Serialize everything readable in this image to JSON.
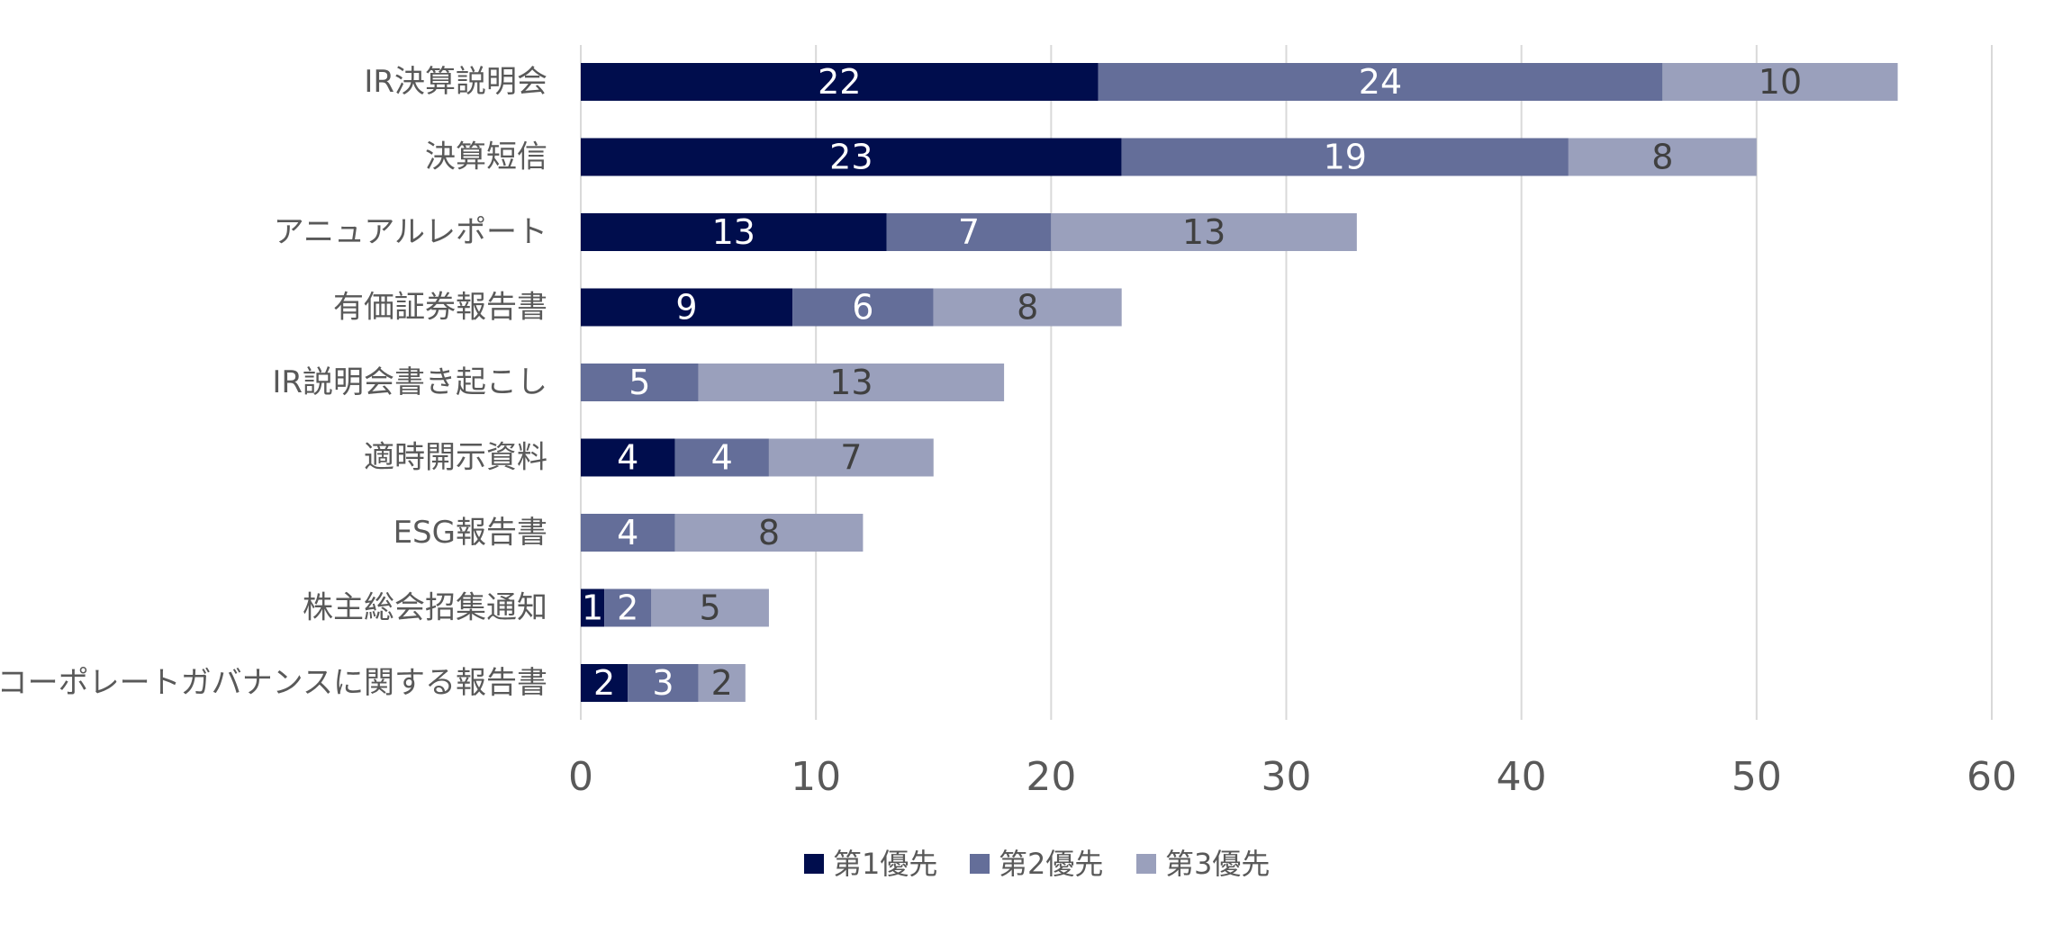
{
  "chart_data": {
    "type": "bar",
    "orientation": "horizontal",
    "stacked": true,
    "categories": [
      "IR決算説明会",
      "決算短信",
      "アニュアルレポート",
      "有価証券報告書",
      "IR説明会書き起こし",
      "適時開示資料",
      "ESG報告書",
      "株主総会招集通知",
      "コーポレートガバナンスに関する報告書"
    ],
    "series": [
      {
        "name": "第1優先",
        "color": "#000d4d",
        "label_color": "#ffffff",
        "values": [
          22,
          23,
          13,
          9,
          0,
          4,
          0,
          1,
          2
        ]
      },
      {
        "name": "第2優先",
        "color": "#646e99",
        "label_color": "#ffffff",
        "values": [
          24,
          19,
          7,
          6,
          5,
          4,
          4,
          2,
          3
        ]
      },
      {
        "name": "第3優先",
        "color": "#9aa0bc",
        "label_color": "#404040",
        "values": [
          10,
          8,
          13,
          8,
          13,
          7,
          8,
          5,
          2
        ]
      }
    ],
    "xlim": [
      0,
      60
    ],
    "xticks": [
      0,
      10,
      20,
      30,
      40,
      50,
      60
    ],
    "grid": true,
    "legend": "bottom"
  }
}
